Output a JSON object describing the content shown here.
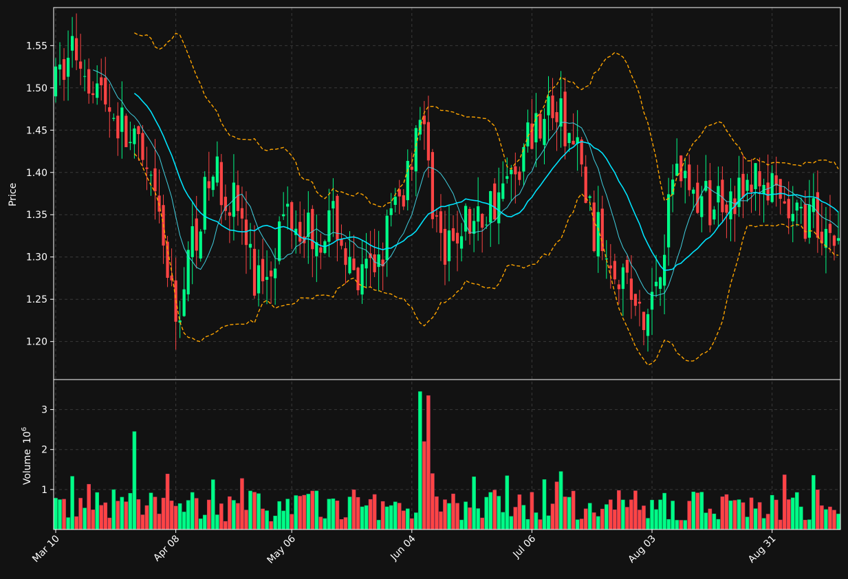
{
  "chart_data": {
    "type": "candlestick",
    "title": "",
    "xlabel": "",
    "ylabel": "Price",
    "volume_label": "Volume",
    "volume_exponent_label": "10",
    "volume_exponent": "6",
    "ylim": [
      1.155,
      1.595
    ],
    "volume_ylim": [
      0,
      3.75
    ],
    "x_tick_labels": [
      "Mar 10",
      "Apr 08",
      "May 06",
      "Jun 04",
      "Jul 06",
      "Aug 03",
      "Aug 31"
    ],
    "x_tick_index": [
      0,
      29,
      57,
      86,
      115,
      144,
      173
    ],
    "y_ticks": [
      1.2,
      1.25,
      1.3,
      1.35,
      1.4,
      1.45,
      1.5,
      1.55
    ],
    "volume_ticks": [
      1,
      2,
      3
    ],
    "grid": true,
    "series": [
      {
        "name": "",
        "color": "#00ff88",
        "kind": "up-candles"
      },
      {
        "name": "",
        "color": "#ff4444",
        "kind": "down-candles"
      },
      {
        "name": "",
        "color": "#00e5ff",
        "kind": "moving-average-long"
      },
      {
        "name": "",
        "color": "#40d0e0",
        "kind": "moving-average-short"
      },
      {
        "name": "",
        "color": "#ffa500",
        "kind": "bollinger-band",
        "dashed": true
      }
    ]
  },
  "colors": {
    "background": "#121212",
    "up": "#00ff88",
    "down": "#ff4444",
    "ma_long": "#00e5ff",
    "ma_short": "#40d0e0",
    "band": "#ffa500",
    "grid": "#3a3a3a",
    "axis": "#ffffff"
  }
}
